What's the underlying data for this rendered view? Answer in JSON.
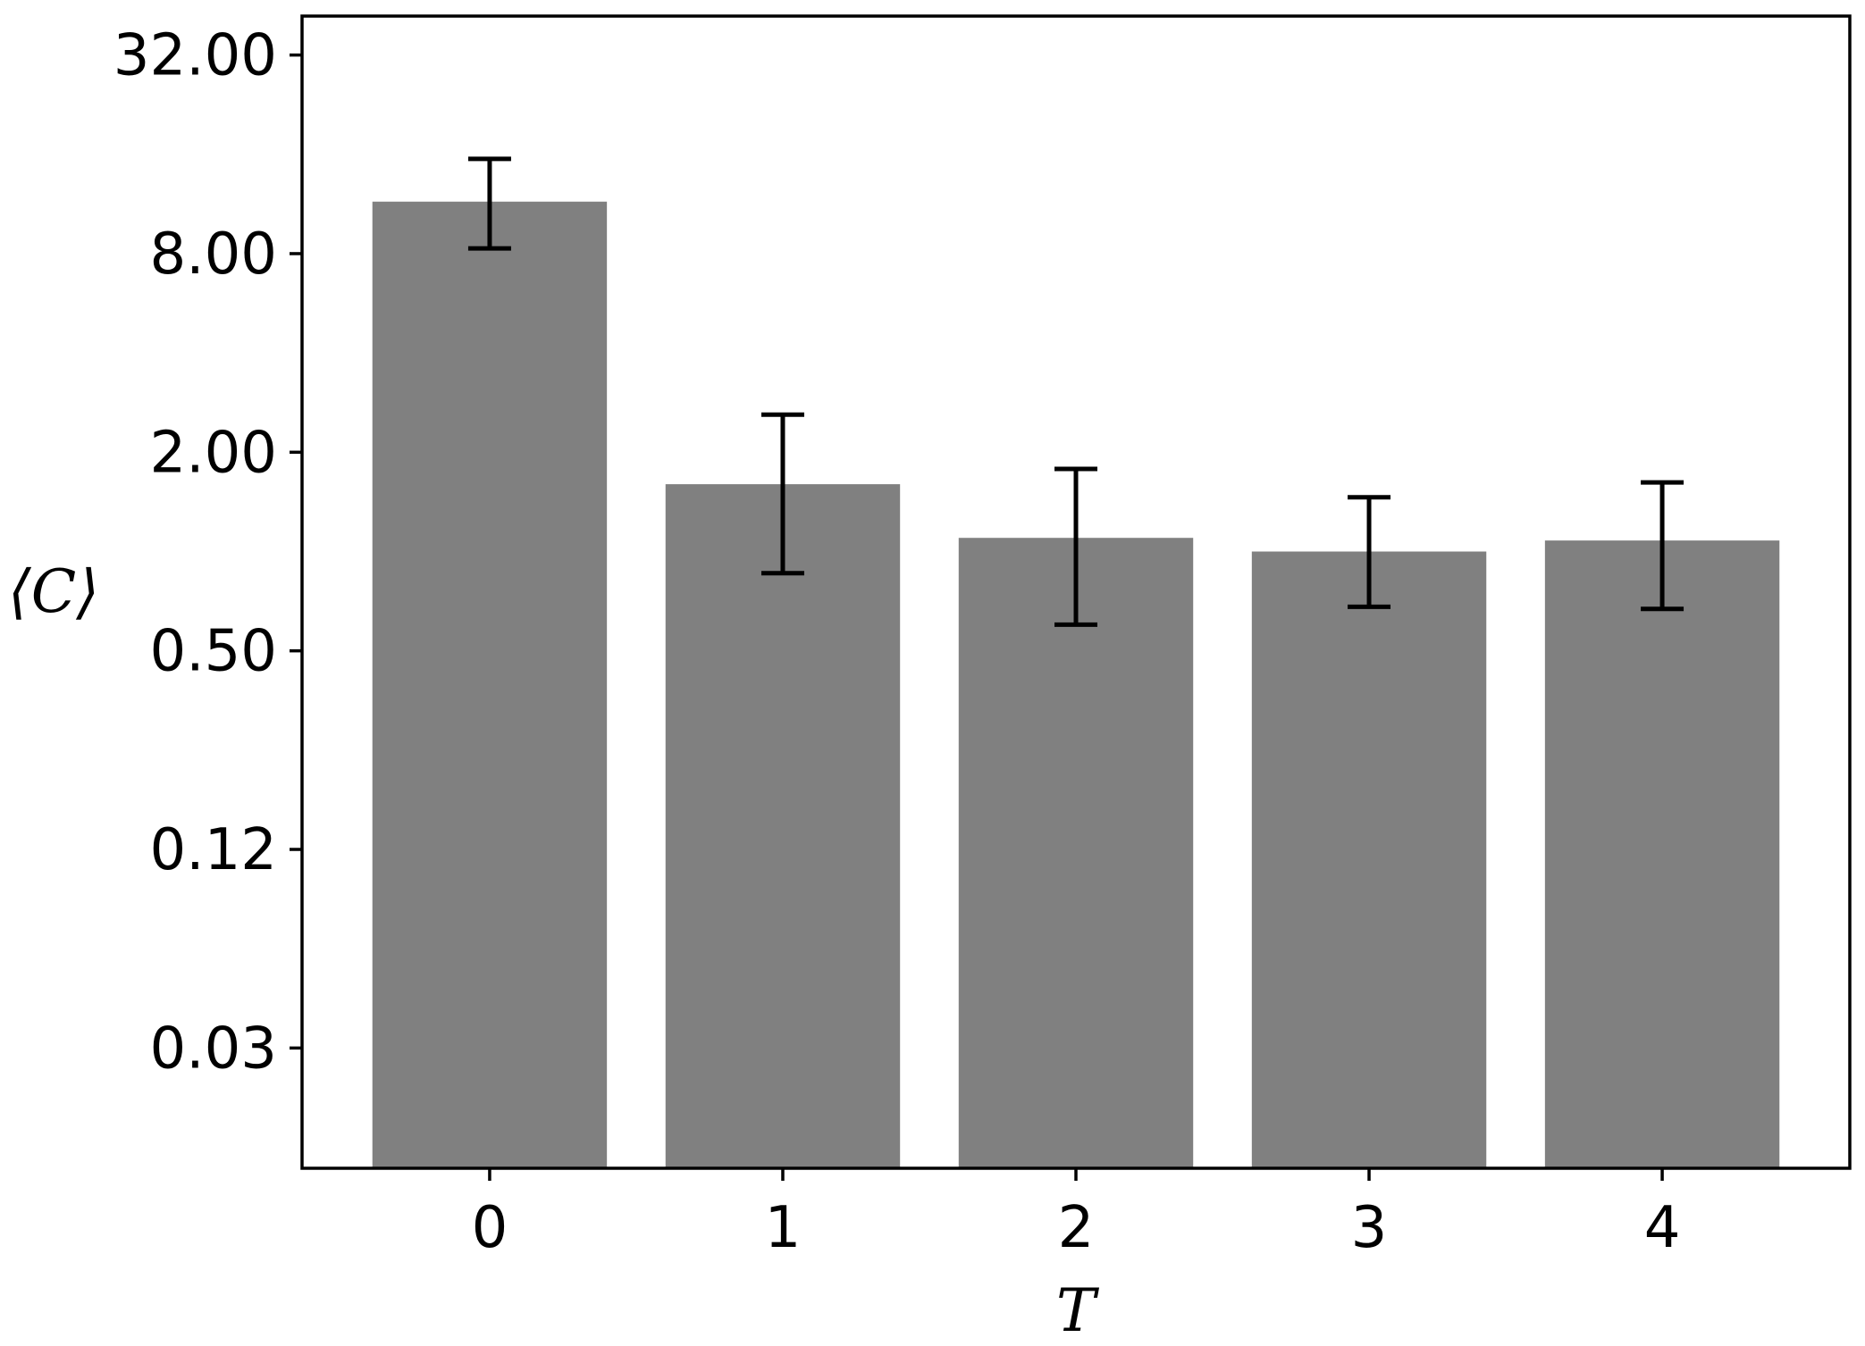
{
  "chart_data": {
    "type": "bar",
    "title": "",
    "xlabel": "T",
    "ylabel": "⟨C⟩",
    "yscale": "log2",
    "ylim": [
      0.0135,
      42
    ],
    "categories": [
      "0",
      "1",
      "2",
      "3",
      "4"
    ],
    "values": [
      11.5,
      1.6,
      1.1,
      1.0,
      1.08
    ],
    "error_low": [
      8.3,
      0.86,
      0.6,
      0.68,
      0.67
    ],
    "error_high": [
      15.5,
      2.6,
      1.78,
      1.46,
      1.62
    ],
    "y_ticks": [
      {
        "value": 0.03125,
        "label": "0.03"
      },
      {
        "value": 0.125,
        "label": "0.12"
      },
      {
        "value": 0.5,
        "label": "0.50"
      },
      {
        "value": 2,
        "label": "2.00"
      },
      {
        "value": 8,
        "label": "8.00"
      },
      {
        "value": 32,
        "label": "32.00"
      }
    ],
    "grid": false,
    "colors": {
      "bar": "#808080",
      "error": "#000000",
      "axis": "#000000"
    }
  }
}
